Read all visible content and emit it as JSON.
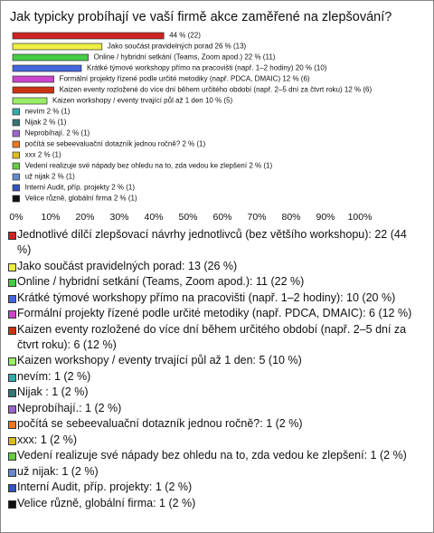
{
  "chart_data": {
    "type": "bar",
    "orientation": "horizontal",
    "title": "Jak typicky probíhají ve vaší firmě akce zaměřené na zlepšování?",
    "categories": [
      "Jednotlivé dílčí zlepšovací návrhy jednotlivců (bez většího workshopu): 22 (44 %)",
      "Jako součást pravidelných porad: 13 (26 %)",
      "Online / hybridní setkání (Teams, Zoom apod.): 11 (22 %)",
      "Krátké týmové workshopy přímo na pracovišti (např. 1–2 hodiny): 10 (20 %)",
      "Formální projekty řízené podle určité metodiky (např. PDCA, DMAIC): 6 (12 %)",
      "Kaizen eventy rozložené do více dní během určitého období (např. 2–5 dní za čtvrt roku): 6 (12 %)",
      "Kaizen workshopy / eventy trvající půl až 1 den: 5 (10 %)",
      "nevím: 1 (2 %)",
      "Nijak : 1 (2 %)",
      "Neprobíhají.: 1 (2 %)",
      "počítá se sebeevaluační dotazník jednou ročně?: 1 (2 %)",
      "xxx: 1 (2 %)",
      "Vedení realizuje své nápady bez ohledu na to, zda vedou ke zlepšení: 1 (2 %)",
      "už nijak: 1 (2 %)",
      "Interní Audit, příp. projekty: 1 (2 %)",
      "Velice různě, globální firma: 1 (2 %)"
    ],
    "values": [
      44,
      26,
      22,
      20,
      12,
      12,
      10,
      2,
      2,
      2,
      2,
      2,
      2,
      2,
      2,
      2
    ],
    "value_labels": [
      "44 % (22)",
      "Jako součást pravidelných porad 26 % (13)",
      "Online / hybridní setkání (Teams, Zoom apod.) 22 % (11)",
      "Krátké týmové workshopy přímo na pracovišti (např. 1–2 hodiny) 20 % (10)",
      "Formální projekty řízené podle určité metodiky (např. PDCA, DMAIC) 12 % (6)",
      "Kaizen eventy rozložené do více dní během určitého období (např. 2–5 dní za čtvrt roku) 12 % (6)",
      "Kaizen workshopy / eventy trvající půl až 1 den 10 % (5)",
      "nevím 2 % (1)",
      "Nijak  2 % (1)",
      "Neprobíhají. 2 % (1)",
      "počítá se sebeevaluační dotazník jednou ročně? 2 % (1)",
      "xxx 2 % (1)",
      "Vedení realizuje své nápady bez ohledu na to, zda vedou ke zlepšení 2 % (1)",
      "už nijak 2 % (1)",
      "Interní Audit, příp. projekty 2 % (1)",
      "Velice různě, globální firma 2 % (1)"
    ],
    "colors": [
      "#cc2222",
      "#eeee44",
      "#44cc44",
      "#4466dd",
      "#cc44cc",
      "#cc3311",
      "#99ee66",
      "#33aaaa",
      "#337777",
      "#9966cc",
      "#ee7722",
      "#ddbb22",
      "#66cc44",
      "#6688cc",
      "#3355bb",
      "#111111"
    ],
    "xlim": [
      0,
      100
    ],
    "xticks": [
      {
        "value": 0,
        "label": "0%"
      },
      {
        "value": 10,
        "label": "10%"
      },
      {
        "value": 20,
        "label": "20%"
      },
      {
        "value": 30,
        "label": "30%"
      },
      {
        "value": 40,
        "label": "40%"
      },
      {
        "value": 50,
        "label": "50%"
      },
      {
        "value": 60,
        "label": "60%"
      },
      {
        "value": 70,
        "label": "70%"
      },
      {
        "value": 80,
        "label": "80%"
      },
      {
        "value": 90,
        "label": "90%"
      },
      {
        "value": 100,
        "label": "100%"
      }
    ],
    "grid": false
  }
}
